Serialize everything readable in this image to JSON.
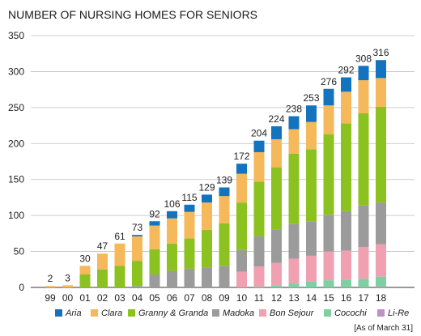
{
  "chart_data": {
    "type": "bar",
    "stacked": true,
    "title": "NUMBER OF NURSING HOMES FOR SENIORS",
    "note": "[As of March 31]",
    "ylim": [
      0,
      350
    ],
    "yticks": [
      0,
      50,
      100,
      150,
      200,
      250,
      300,
      350
    ],
    "grid": true,
    "legend_position": "bottom",
    "categories": [
      "99",
      "00",
      "01",
      "02",
      "03",
      "04",
      "05",
      "06",
      "07",
      "08",
      "09",
      "10",
      "11",
      "12",
      "13",
      "14",
      "15",
      "16",
      "17",
      "18"
    ],
    "totals": [
      2,
      3,
      30,
      47,
      61,
      73,
      92,
      106,
      115,
      129,
      139,
      172,
      204,
      224,
      238,
      253,
      276,
      292,
      308,
      316
    ],
    "series": [
      {
        "name": "Li-Re",
        "color": "#c28fc4",
        "values": [
          0,
          0,
          0,
          0,
          0,
          0,
          0,
          0,
          0,
          0,
          0,
          0,
          0,
          0,
          0,
          0,
          0,
          0,
          0,
          1
        ]
      },
      {
        "name": "Cocochi",
        "color": "#7fcfa3",
        "values": [
          0,
          0,
          0,
          0,
          0,
          0,
          0,
          0,
          0,
          0,
          0,
          0,
          1,
          3,
          5,
          8,
          10,
          11,
          12,
          14
        ]
      },
      {
        "name": "Bon Sejour",
        "color": "#f0a0b0",
        "values": [
          0,
          0,
          0,
          0,
          0,
          0,
          0,
          0,
          0,
          0,
          0,
          22,
          28,
          31,
          35,
          36,
          40,
          40,
          44,
          45
        ]
      },
      {
        "name": "Madoka",
        "color": "#9b9b9b",
        "values": [
          0,
          0,
          0,
          0,
          0,
          2,
          18,
          23,
          26,
          28,
          30,
          30,
          42,
          46,
          48,
          48,
          51,
          55,
          58,
          58
        ]
      },
      {
        "name": "Granny & Granda",
        "color": "#8cc21f",
        "values": [
          0,
          0,
          18,
          25,
          30,
          35,
          35,
          38,
          42,
          52,
          59,
          66,
          76,
          87,
          98,
          100,
          112,
          122,
          128,
          133
        ]
      },
      {
        "name": "Clara",
        "color": "#f5b85a",
        "values": [
          2,
          3,
          12,
          22,
          31,
          34,
          33,
          35,
          37,
          38,
          38,
          40,
          41,
          39,
          34,
          38,
          40,
          44,
          46,
          40
        ]
      },
      {
        "name": "Aria",
        "color": "#1473bf",
        "values": [
          0,
          0,
          0,
          0,
          0,
          2,
          6,
          10,
          10,
          11,
          12,
          14,
          16,
          18,
          18,
          23,
          23,
          20,
          20,
          25
        ]
      }
    ],
    "legend_order": [
      "Aria",
      "Clara",
      "Granny & Granda",
      "Madoka",
      "Bon Sejour",
      "Cocochi",
      "Li-Re"
    ]
  }
}
